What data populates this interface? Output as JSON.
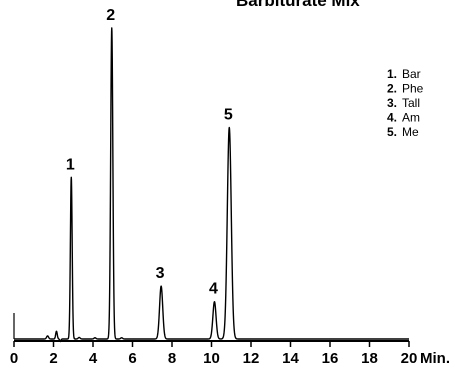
{
  "chart_data": {
    "type": "line",
    "title": "Barbiturate Mix",
    "xlabel": "Min.",
    "ylabel": "",
    "xlim": [
      0,
      20
    ],
    "ylim": [
      0,
      100
    ],
    "grid": false,
    "x_ticks": [
      0,
      2,
      4,
      6,
      8,
      10,
      12,
      14,
      16,
      18,
      20
    ],
    "peaks": [
      {
        "label": "1",
        "x": 2.9,
        "y": 52,
        "width": 0.045
      },
      {
        "label": "2",
        "x": 4.95,
        "y": 100,
        "width": 0.055
      },
      {
        "label": "3",
        "x": 7.45,
        "y": 17,
        "width": 0.08
      },
      {
        "label": "4",
        "x": 10.15,
        "y": 12,
        "width": 0.08
      },
      {
        "label": "5",
        "x": 10.9,
        "y": 68,
        "width": 0.1
      }
    ],
    "minor_features": [
      {
        "x": 1.7,
        "y": 1.0,
        "width": 0.05
      },
      {
        "x": 2.15,
        "y": 2.5,
        "width": 0.04
      },
      {
        "x": 2.35,
        "y": -0.8,
        "width": 0.03
      },
      {
        "x": 3.3,
        "y": 0.5,
        "width": 0.05
      },
      {
        "x": 4.1,
        "y": 0.4,
        "width": 0.05
      },
      {
        "x": 5.45,
        "y": 0.4,
        "width": 0.05
      }
    ],
    "legend": {
      "placement": "right",
      "entries": [
        {
          "num": "1.",
          "name": "Bar"
        },
        {
          "num": "2.",
          "name": "Phe"
        },
        {
          "num": "3.",
          "name": "Tall"
        },
        {
          "num": "4.",
          "name": "Am"
        },
        {
          "num": "5.",
          "name": "Me"
        }
      ]
    }
  }
}
